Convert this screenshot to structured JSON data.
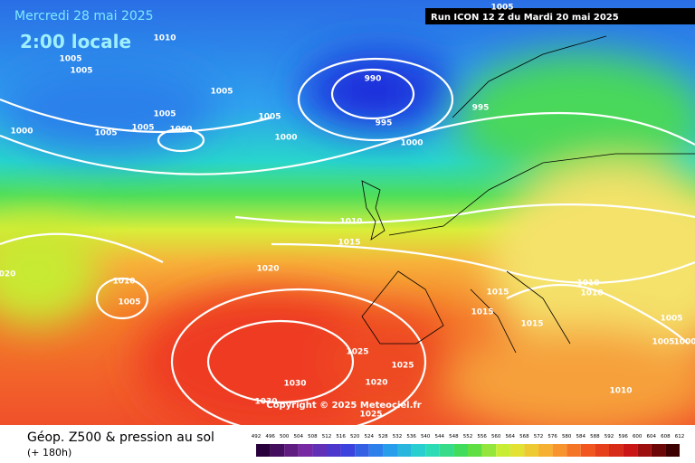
{
  "header": {
    "date": "Mercredi 28 mai 2025",
    "time": "2:00 locale",
    "run": "Run ICON 12 Z du Mardi 20 mai 2025"
  },
  "isobar_labels": [
    "1010",
    "1005",
    "1005",
    "1005",
    "1005",
    "1005",
    "1005",
    "1000",
    "1000",
    "1005",
    "1000",
    "990",
    "995",
    "995",
    "1000",
    "1010",
    "1015",
    "1020",
    "1010",
    "1005",
    "020",
    "1015",
    "1015",
    "1015",
    "1010",
    "1010",
    "1005",
    "1005",
    "1000",
    "1025",
    "1025",
    "1030",
    "1020",
    "1030",
    "1025",
    "1010",
    "1005"
  ],
  "copyright": "Copyright © 2025 Meteociel.fr",
  "footer": {
    "title": "Géop. Z500 & pression au sol",
    "lead": "(+ 180h)"
  },
  "scale": [
    492,
    496,
    500,
    504,
    508,
    512,
    516,
    520,
    524,
    528,
    532,
    536,
    540,
    544,
    548,
    552,
    556,
    560,
    564,
    568,
    572,
    576,
    580,
    584,
    588,
    592,
    596,
    600,
    604,
    608,
    612
  ]
}
